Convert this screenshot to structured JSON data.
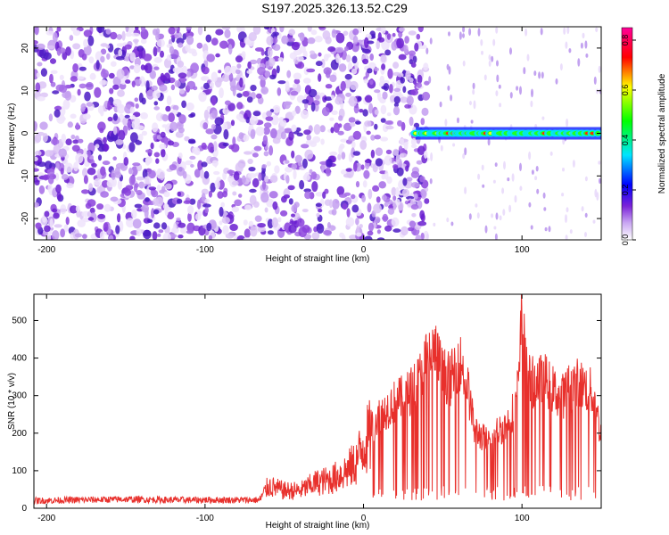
{
  "title": "S197.2025.326.13.52.C29",
  "chart_data": [
    {
      "type": "heatmap",
      "title": "S197.2025.326.13.52.C29",
      "xlabel": "Height of straight line (km)",
      "ylabel": "Frequency (Hz)",
      "xlim": [
        -208,
        150
      ],
      "ylim": [
        -25,
        25
      ],
      "xticks": [
        -200,
        -100,
        0,
        100
      ],
      "yticks": [
        -20,
        -10,
        0,
        10,
        20
      ],
      "colorbar": {
        "label": "Normalized spectral amplitude",
        "range": [
          0.0,
          0.85
        ],
        "ticks": [
          "0.0",
          "0.2",
          "0.4",
          "0.6",
          "0.8"
        ],
        "colors": [
          "#ffffff",
          "#8a2be2",
          "#0000ff",
          "#00ffff",
          "#00ff00",
          "#ffff00",
          "#ff0000",
          "#ff00aa"
        ]
      },
      "noise_region_km": [
        -208,
        40
      ],
      "signal_band": {
        "from_km": 33,
        "to_km": 150,
        "frequency_hz": 0,
        "peak_amplitude": 0.8
      }
    },
    {
      "type": "line",
      "xlabel": "Height of straight line (km)",
      "ylabel": "SNR (10 * v/v)",
      "xlim": [
        -208,
        150
      ],
      "ylim": [
        0,
        570
      ],
      "xticks": [
        -200,
        -100,
        0,
        100
      ],
      "yticks": [
        0,
        100,
        200,
        300,
        400,
        500
      ],
      "color": "#e8302c",
      "series": [
        {
          "name": "SNR",
          "x": [
            -208,
            -180,
            -150,
            -120,
            -90,
            -66,
            -60,
            -50,
            -40,
            -30,
            -20,
            -10,
            -5,
            0,
            5,
            10,
            15,
            20,
            25,
            30,
            35,
            40,
            45,
            50,
            55,
            60,
            65,
            70,
            75,
            80,
            85,
            90,
            95,
            98,
            100,
            102,
            105,
            110,
            115,
            120,
            125,
            130,
            135,
            140,
            145,
            150
          ],
          "values": [
            20,
            22,
            24,
            22,
            22,
            22,
            70,
            55,
            55,
            80,
            90,
            120,
            140,
            200,
            230,
            260,
            280,
            300,
            310,
            330,
            360,
            420,
            440,
            380,
            360,
            420,
            360,
            220,
            200,
            180,
            220,
            230,
            280,
            350,
            560,
            440,
            350,
            360,
            360,
            330,
            310,
            340,
            350,
            340,
            320,
            200
          ]
        }
      ]
    }
  ]
}
